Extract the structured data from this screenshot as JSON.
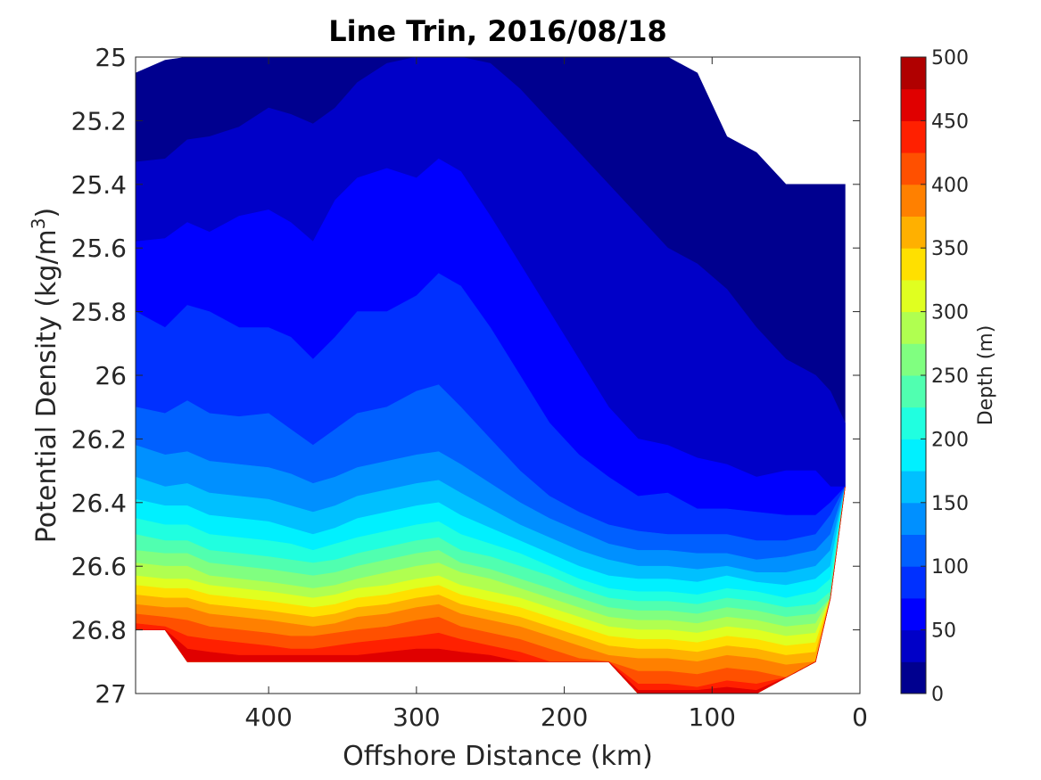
{
  "chart_data": {
    "type": "heatmap",
    "subtype": "filled-contour",
    "title": "Line Trin, 2016/08/18",
    "xlabel": "Offshore Distance (km)",
    "ylabel_main": "Potential Density (kg/m",
    "ylabel_sup": "3",
    "ylabel_close": ")",
    "xlim": [
      490,
      0
    ],
    "x_reversed": true,
    "ylim": [
      25,
      27
    ],
    "y_reversed": true,
    "xticks": [
      400,
      300,
      200,
      100,
      0
    ],
    "yticks": [
      25,
      25.2,
      25.4,
      25.6,
      25.8,
      26,
      26.2,
      26.4,
      26.6,
      26.8,
      27
    ],
    "colorbar": {
      "label": "Depth (m)",
      "range": [
        0,
        500
      ],
      "levels": [
        0,
        25,
        50,
        75,
        100,
        125,
        150,
        175,
        200,
        225,
        250,
        275,
        300,
        325,
        350,
        375,
        400,
        425,
        450,
        475,
        500
      ],
      "ticks": [
        0,
        50,
        100,
        150,
        200,
        250,
        300,
        350,
        400,
        450,
        500
      ],
      "colormap": "jet",
      "colors": [
        "#00008f",
        "#0000c8",
        "#0000ff",
        "#0030ff",
        "#0060ff",
        "#0090ff",
        "#00c0ff",
        "#00f0ff",
        "#20ffe0",
        "#50ffb0",
        "#80ff80",
        "#b0ff50",
        "#e0ff20",
        "#ffe000",
        "#ffb000",
        "#ff8000",
        "#ff5000",
        "#ff2000",
        "#e00000",
        "#b00000"
      ]
    },
    "x": [
      490,
      470,
      455,
      440,
      420,
      400,
      385,
      370,
      355,
      340,
      320,
      300,
      285,
      270,
      250,
      230,
      210,
      190,
      170,
      150,
      130,
      110,
      90,
      70,
      50,
      30,
      20,
      10
    ],
    "data_top": [
      25,
      25,
      25,
      25,
      25,
      25,
      25,
      25,
      25,
      25,
      25,
      25,
      25,
      25,
      25,
      25,
      25,
      25,
      25,
      25,
      25,
      25.05,
      25.25,
      25.3,
      25.4,
      25.4,
      25.4,
      25.4
    ],
    "data_bottom": [
      26.8,
      26.8,
      26.9,
      26.9,
      26.9,
      26.9,
      26.9,
      26.9,
      26.9,
      26.9,
      26.9,
      26.9,
      26.9,
      26.9,
      26.9,
      26.9,
      26.9,
      26.9,
      26.9,
      27,
      27,
      27,
      27,
      27,
      26.95,
      26.9,
      26.7,
      26.35
    ],
    "contours": [
      {
        "level": 25,
        "y": [
          25.05,
          25.01,
          25,
          25,
          25,
          25,
          25,
          25,
          25,
          25,
          25,
          25,
          25,
          25,
          25,
          25,
          25,
          25,
          25,
          25,
          25,
          25.05,
          25.25,
          25.3,
          25.4,
          25.4,
          25.4,
          25.4
        ]
      },
      {
        "level": 50,
        "y": [
          25.33,
          25.32,
          25.26,
          25.25,
          25.22,
          25.16,
          25.18,
          25.21,
          25.16,
          25.08,
          25.02,
          25,
          25,
          25,
          25.02,
          25.1,
          25.2,
          25.3,
          25.4,
          25.5,
          25.6,
          25.65,
          25.73,
          25.85,
          25.95,
          26.0,
          26.05,
          26.15
        ]
      },
      {
        "level": 75,
        "y": [
          25.58,
          25.57,
          25.52,
          25.55,
          25.5,
          25.48,
          25.52,
          25.58,
          25.45,
          25.38,
          25.35,
          25.38,
          25.32,
          25.36,
          25.5,
          25.65,
          25.8,
          25.95,
          26.1,
          26.2,
          26.22,
          26.26,
          26.28,
          26.32,
          26.3,
          26.3,
          26.35,
          26.37
        ]
      },
      {
        "level": 100,
        "y": [
          25.8,
          25.85,
          25.78,
          25.8,
          25.85,
          25.85,
          25.88,
          25.95,
          25.88,
          25.8,
          25.8,
          25.75,
          25.68,
          25.72,
          25.85,
          26.0,
          26.15,
          26.25,
          26.32,
          26.38,
          26.37,
          26.42,
          26.42,
          26.43,
          26.44,
          26.44,
          26.4,
          26.38
        ]
      },
      {
        "level": 125,
        "y": [
          26.1,
          26.12,
          26.08,
          26.12,
          26.13,
          26.12,
          26.17,
          26.22,
          26.17,
          26.12,
          26.1,
          26.05,
          26.03,
          26.1,
          26.2,
          26.3,
          26.38,
          26.43,
          26.47,
          26.49,
          26.5,
          26.5,
          26.5,
          26.52,
          26.52,
          26.5,
          26.44,
          26.4
        ]
      },
      {
        "level": 150,
        "y": [
          26.22,
          26.25,
          26.24,
          26.27,
          26.28,
          26.29,
          26.31,
          26.34,
          26.32,
          26.29,
          26.27,
          26.25,
          26.24,
          26.28,
          26.34,
          26.4,
          26.45,
          26.49,
          26.53,
          26.55,
          26.55,
          26.56,
          26.56,
          26.58,
          26.57,
          26.55,
          26.5,
          26.45
        ]
      },
      {
        "level": 175,
        "y": [
          26.32,
          26.35,
          26.34,
          26.37,
          26.38,
          26.39,
          26.41,
          26.43,
          26.41,
          26.38,
          26.36,
          26.34,
          26.33,
          26.37,
          26.42,
          26.47,
          26.51,
          26.55,
          26.58,
          26.6,
          26.6,
          26.61,
          26.6,
          26.62,
          26.62,
          26.6,
          26.55,
          26.5
        ]
      },
      {
        "level": 200,
        "y": [
          26.39,
          26.41,
          26.41,
          26.44,
          26.45,
          26.46,
          26.48,
          26.5,
          26.48,
          26.45,
          26.43,
          26.41,
          26.4,
          26.44,
          26.48,
          26.52,
          26.56,
          26.6,
          26.63,
          26.64,
          26.64,
          26.65,
          26.63,
          26.65,
          26.66,
          26.64,
          26.6,
          26.55
        ]
      },
      {
        "level": 225,
        "y": [
          26.45,
          26.47,
          26.47,
          26.5,
          26.51,
          26.52,
          26.53,
          26.55,
          26.53,
          26.51,
          26.49,
          26.47,
          26.46,
          26.5,
          26.53,
          26.56,
          26.6,
          26.64,
          26.67,
          26.68,
          26.68,
          26.69,
          26.67,
          26.68,
          26.7,
          26.68,
          26.64,
          26.6
        ]
      },
      {
        "level": 250,
        "y": [
          26.5,
          26.52,
          26.52,
          26.55,
          26.56,
          26.57,
          26.58,
          26.59,
          26.58,
          26.56,
          26.54,
          26.52,
          26.51,
          26.55,
          26.57,
          26.6,
          26.63,
          26.67,
          26.7,
          26.71,
          26.71,
          26.72,
          26.7,
          26.71,
          26.73,
          26.72,
          26.68,
          26.64
        ]
      },
      {
        "level": 275,
        "y": [
          26.55,
          26.56,
          26.56,
          26.59,
          26.6,
          26.61,
          26.62,
          26.63,
          26.62,
          26.6,
          26.58,
          26.56,
          26.55,
          26.59,
          26.61,
          26.64,
          26.67,
          26.7,
          26.73,
          26.74,
          26.74,
          26.75,
          26.73,
          26.74,
          26.76,
          26.75,
          26.71,
          26.67
        ]
      },
      {
        "level": 300,
        "y": [
          26.59,
          26.6,
          26.6,
          26.63,
          26.64,
          26.65,
          26.66,
          26.67,
          26.66,
          26.64,
          26.62,
          26.6,
          26.59,
          26.62,
          26.64,
          26.67,
          26.7,
          26.73,
          26.76,
          26.77,
          26.77,
          26.78,
          26.76,
          26.77,
          26.79,
          26.78,
          26.74,
          26.7
        ]
      },
      {
        "level": 325,
        "y": [
          26.63,
          26.64,
          26.64,
          26.66,
          26.67,
          26.68,
          26.69,
          26.7,
          26.69,
          26.67,
          26.66,
          26.64,
          26.63,
          26.66,
          26.68,
          26.7,
          26.73,
          26.76,
          26.79,
          26.8,
          26.8,
          26.81,
          26.79,
          26.8,
          26.82,
          26.81,
          26.77,
          26.73
        ]
      },
      {
        "level": 350,
        "y": [
          26.66,
          26.67,
          26.67,
          26.69,
          26.7,
          26.71,
          26.72,
          26.73,
          26.72,
          26.7,
          26.69,
          26.67,
          26.66,
          26.69,
          26.71,
          26.73,
          26.76,
          26.79,
          26.82,
          26.83,
          26.83,
          26.84,
          26.82,
          26.83,
          26.85,
          26.84,
          26.8,
          26.76
        ]
      },
      {
        "level": 375,
        "y": [
          26.69,
          26.7,
          26.7,
          26.72,
          26.73,
          26.74,
          26.75,
          26.76,
          26.75,
          26.73,
          26.72,
          26.7,
          26.69,
          26.72,
          26.74,
          26.76,
          26.79,
          26.82,
          26.85,
          26.86,
          26.86,
          26.87,
          26.85,
          26.86,
          26.88,
          26.87,
          26.83,
          26.79
        ]
      },
      {
        "level": 400,
        "y": [
          26.72,
          26.73,
          26.73,
          26.75,
          26.76,
          26.77,
          26.78,
          26.79,
          26.78,
          26.76,
          26.75,
          26.73,
          26.72,
          26.75,
          26.77,
          26.79,
          26.82,
          26.85,
          26.88,
          26.89,
          26.89,
          26.9,
          26.88,
          26.89,
          26.91,
          26.9,
          26.86,
          26.82
        ]
      },
      {
        "level": 425,
        "y": [
          26.75,
          26.76,
          26.77,
          26.79,
          26.8,
          26.81,
          26.82,
          26.82,
          26.81,
          26.8,
          26.79,
          26.77,
          26.76,
          26.79,
          26.81,
          26.83,
          26.86,
          26.89,
          26.92,
          26.93,
          26.93,
          26.94,
          26.92,
          26.93,
          26.95,
          26.94,
          26.9,
          26.86
        ]
      },
      {
        "level": 450,
        "y": [
          26.78,
          26.79,
          26.82,
          26.83,
          26.84,
          26.85,
          26.86,
          26.86,
          26.85,
          26.84,
          26.83,
          26.82,
          26.81,
          26.83,
          26.85,
          26.87,
          26.9,
          26.93,
          26.96,
          26.97,
          26.97,
          26.98,
          26.96,
          26.97,
          26.99,
          26.98,
          26.94,
          26.9
        ]
      },
      {
        "level": 475,
        "y": [
          26.8,
          26.81,
          26.86,
          26.87,
          26.88,
          26.88,
          26.88,
          26.88,
          26.88,
          26.88,
          26.87,
          26.86,
          26.86,
          26.87,
          26.88,
          26.9,
          26.93,
          26.96,
          26.99,
          26.99,
          26.99,
          26.99,
          26.98,
          26.99,
          27.0,
          27.0,
          26.97,
          26.93
        ]
      }
    ]
  }
}
